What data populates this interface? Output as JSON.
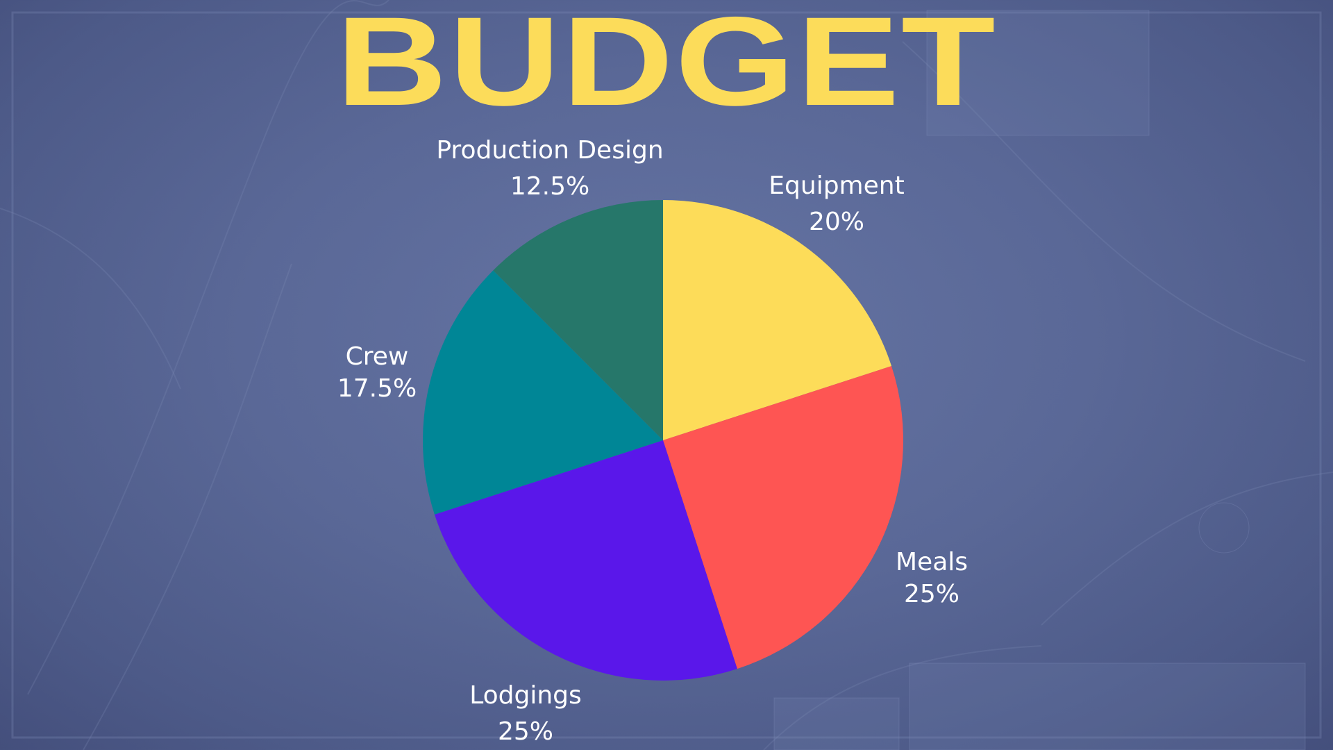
{
  "slide": {
    "title": "BUDGET"
  },
  "chart_data": {
    "type": "pie",
    "title": "BUDGET",
    "categories": [
      "Equipment",
      "Meals",
      "Lodgings",
      "Crew",
      "Production Design"
    ],
    "values": [
      20,
      25,
      25,
      17.5,
      12.5
    ],
    "value_labels": [
      "20%",
      "25%",
      "25%",
      "17.5%",
      "12.5%"
    ],
    "colors": [
      "#fddc59",
      "#fe5553",
      "#5a17ea",
      "#008696",
      "#26776a"
    ],
    "start_angle": "12 o'clock",
    "direction": "clockwise",
    "legend": "none",
    "labels": "outside"
  },
  "theme": {
    "title_color": "#fcdc5a",
    "label_color": "#ffffff"
  }
}
